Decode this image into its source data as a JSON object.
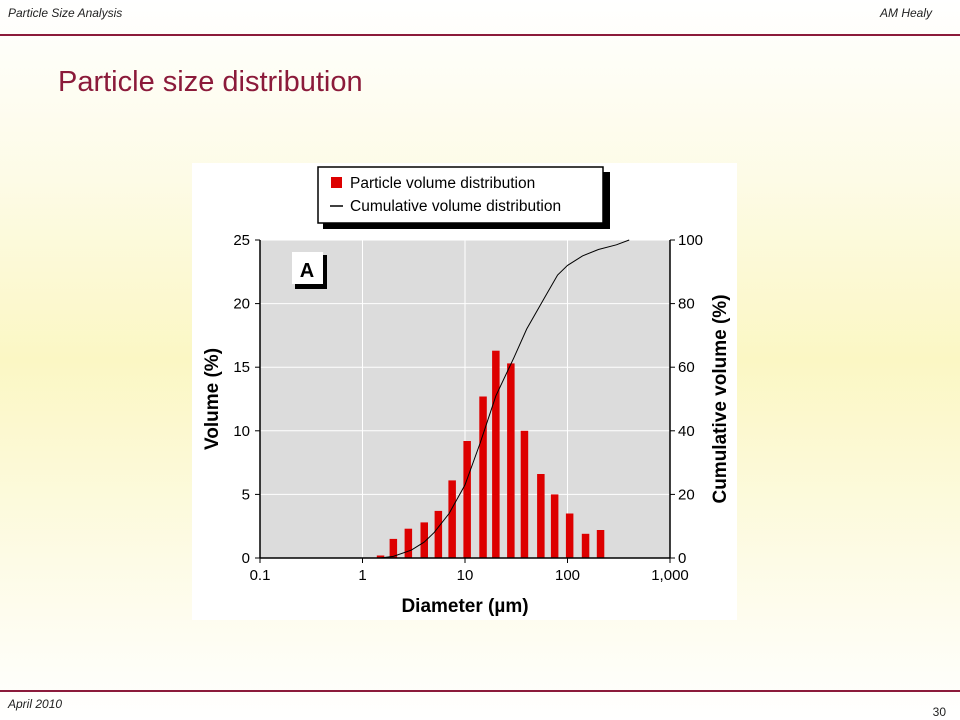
{
  "header": {
    "left": "Particle Size Analysis",
    "right": "AM Healy"
  },
  "slide": {
    "title": "Particle size distribution",
    "date": "April 2010",
    "page": "30"
  },
  "chart_data": {
    "type": "bar",
    "panel_label": "A",
    "xlabel": "Diameter (µm)",
    "ylabel": "Volume (%)",
    "y2label": "Cumulative volume (%)",
    "x_scale": "log",
    "xlim": [
      0.1,
      1000
    ],
    "ylim": [
      0,
      25
    ],
    "y2lim": [
      0,
      100
    ],
    "x_ticks": [
      0.1,
      1,
      10,
      100,
      1000
    ],
    "x_tick_labels": [
      "0.1",
      "1",
      "10",
      "100",
      "1,000"
    ],
    "y_ticks": [
      "0",
      "5",
      "10",
      "15",
      "20",
      "25"
    ],
    "y2_ticks": [
      "0",
      "20",
      "40",
      "60",
      "80",
      "100"
    ],
    "grid": true,
    "legend_position": "top",
    "colors": {
      "bars": "#dd0000",
      "line": "#000000",
      "plot_bg": "#dcdcdc"
    },
    "series": [
      {
        "name": "Particle volume distribution",
        "type": "bar",
        "x": [
          1.5,
          2,
          2.8,
          4,
          5.5,
          7.5,
          10.5,
          15,
          20,
          28,
          38,
          55,
          75,
          105,
          150,
          210,
          290
        ],
        "values": [
          0.2,
          1.5,
          2.3,
          2.8,
          3.7,
          6.1,
          9.2,
          12.7,
          16.3,
          15.3,
          10.0,
          6.6,
          5.0,
          3.5,
          1.9,
          2.2,
          0
        ]
      },
      {
        "name": "Cumulative volume distribution",
        "type": "line",
        "x": [
          1.5,
          2,
          3,
          4,
          5,
          7,
          10,
          14,
          20,
          30,
          40,
          60,
          80,
          100,
          140,
          200,
          300,
          400
        ],
        "values": [
          0,
          0.5,
          2.5,
          5,
          8,
          14,
          23,
          36,
          51,
          63,
          72,
          82,
          89,
          92,
          95,
          97,
          98.5,
          100
        ]
      }
    ]
  }
}
